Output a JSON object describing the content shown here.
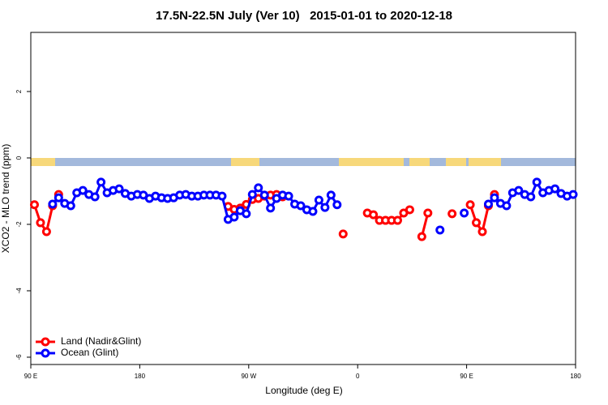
{
  "chart_data": {
    "type": "line",
    "title": "17.5N-22.5N July (Ver 10)   2015-01-01 to 2020-12-18",
    "x_label": "Longitude (deg E)",
    "y_label": "XCO2 - MLO trend (ppm)",
    "xlim": [
      90,
      540
    ],
    "ylim": [
      -6.22,
      3.78
    ],
    "xticks": [
      {
        "value": 90,
        "label": "90 E"
      },
      180,
      {
        "value": 270,
        "label": "90 W"
      },
      {
        "value": 360,
        "label": "0"
      },
      {
        "value": 450,
        "label": "90 E"
      },
      {
        "value": 540,
        "label": "180"
      }
    ],
    "yticks": [
      2,
      0,
      -2,
      -4,
      -6
    ],
    "legend": "bottom-left",
    "x": [
      93,
      98,
      103,
      108,
      113,
      118,
      123,
      128,
      133,
      138,
      143,
      148,
      153,
      158,
      163,
      168,
      173,
      178,
      183,
      188,
      193,
      198,
      203,
      208,
      213,
      218,
      223,
      228,
      233,
      238,
      243,
      248,
      253,
      258,
      263,
      268,
      273,
      278,
      283,
      288,
      293,
      298,
      303,
      308,
      313,
      318,
      323,
      328,
      333,
      338,
      343,
      348,
      353,
      358,
      363,
      368,
      373,
      378,
      383,
      388,
      393,
      398,
      403,
      408,
      413,
      418,
      423,
      428,
      433,
      438,
      443,
      448,
      453,
      458,
      463,
      468,
      473,
      478,
      483,
      488,
      493,
      498,
      503,
      508,
      513,
      518,
      523,
      528,
      533,
      538
    ],
    "series": [
      {
        "name": "Land (Nadir&Glint)",
        "color": "#ff0000",
        "values": [
          -1.41,
          -1.95,
          -2.22,
          -1.44,
          -1.1,
          null,
          null,
          null,
          null,
          null,
          null,
          null,
          null,
          null,
          null,
          null,
          null,
          null,
          null,
          null,
          null,
          null,
          null,
          null,
          null,
          null,
          null,
          null,
          null,
          null,
          null,
          null,
          -1.46,
          -1.55,
          -1.51,
          -1.4,
          -1.25,
          -1.22,
          -1.15,
          -1.12,
          -1.1,
          -1.17,
          null,
          null,
          null,
          null,
          null,
          null,
          null,
          null,
          null,
          -2.29,
          null,
          null,
          null,
          -1.66,
          -1.71,
          -1.88,
          -1.88,
          -1.88,
          -1.88,
          -1.66,
          -1.56,
          null,
          -2.37,
          -1.66,
          null,
          null,
          null,
          -1.68,
          null,
          null,
          -1.41,
          -1.95,
          -2.22,
          -1.44,
          -1.1,
          null,
          null,
          null,
          null,
          null,
          null,
          null,
          null,
          null,
          null,
          null,
          null,
          null
        ]
      },
      {
        "name": "Ocean (Glint)",
        "color": "#0000ff",
        "values": [
          null,
          null,
          null,
          -1.39,
          -1.2,
          -1.37,
          -1.44,
          -1.05,
          -0.98,
          -1.1,
          -1.17,
          -0.73,
          -1.05,
          -0.98,
          -0.93,
          -1.07,
          -1.15,
          -1.1,
          -1.12,
          -1.22,
          -1.15,
          -1.2,
          -1.22,
          -1.2,
          -1.12,
          -1.1,
          -1.15,
          -1.15,
          -1.12,
          -1.12,
          -1.12,
          -1.15,
          -1.85,
          -1.78,
          -1.59,
          -1.68,
          -1.1,
          -0.9,
          -1.12,
          -1.51,
          -1.22,
          -1.12,
          -1.15,
          -1.39,
          -1.44,
          -1.56,
          -1.61,
          -1.27,
          -1.49,
          -1.12,
          -1.41,
          null,
          null,
          null,
          null,
          null,
          null,
          null,
          null,
          null,
          null,
          null,
          null,
          null,
          null,
          null,
          null,
          -2.17,
          null,
          null,
          null,
          -1.66,
          null,
          null,
          null,
          -1.39,
          -1.2,
          -1.37,
          -1.44,
          -1.05,
          -0.98,
          -1.1,
          -1.17,
          -0.73,
          -1.05,
          -0.98,
          -0.93,
          -1.07,
          -1.15,
          -1.1
        ]
      }
    ]
  }
}
